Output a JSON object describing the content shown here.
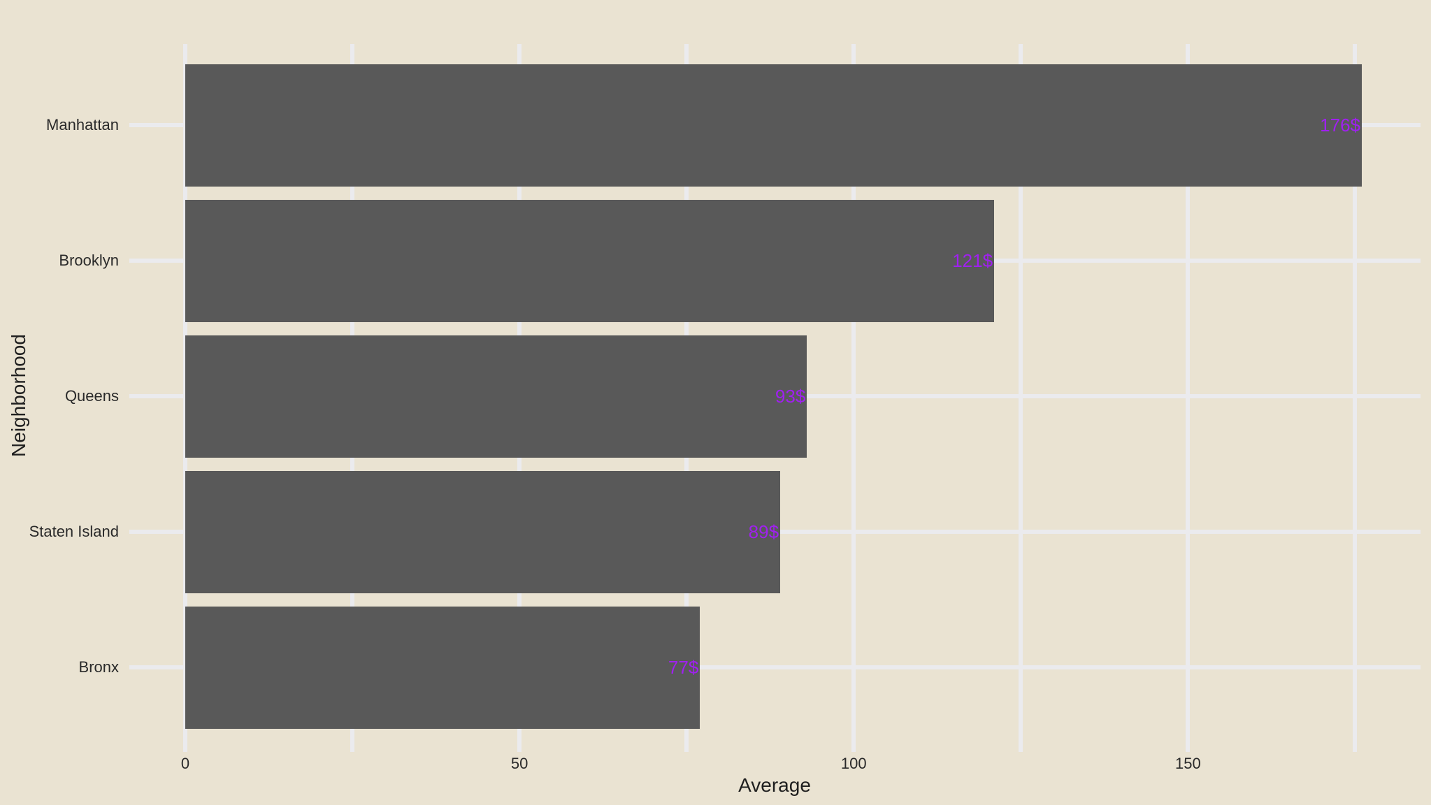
{
  "chart_data": {
    "type": "bar",
    "orientation": "horizontal",
    "title": "",
    "xlabel": "Average",
    "ylabel": "Neighborhood",
    "categories": [
      "Manhattan",
      "Brooklyn",
      "Queens",
      "Staten Island",
      "Bronx"
    ],
    "values": [
      176,
      121,
      93,
      89,
      77
    ],
    "bar_labels": [
      "176$",
      "121$",
      "93$",
      "89$",
      "77$"
    ],
    "x_axis": {
      "tick_values": [
        0,
        50,
        100,
        150
      ],
      "tick_labels": [
        "0",
        "50",
        "100",
        "150"
      ],
      "minor_tick_values": [
        25,
        75,
        125,
        175
      ],
      "range": [
        -8.8,
        184.8
      ]
    },
    "grid": "on",
    "legend": "none"
  },
  "colors": {
    "figure_background": "#EAE3D2",
    "bar_fill": "#595959",
    "gridline": "#EBEBEE",
    "value_label": "#A020F0",
    "axis_text": "#2A2A2A",
    "axis_title_text": "#1F1F1F"
  }
}
